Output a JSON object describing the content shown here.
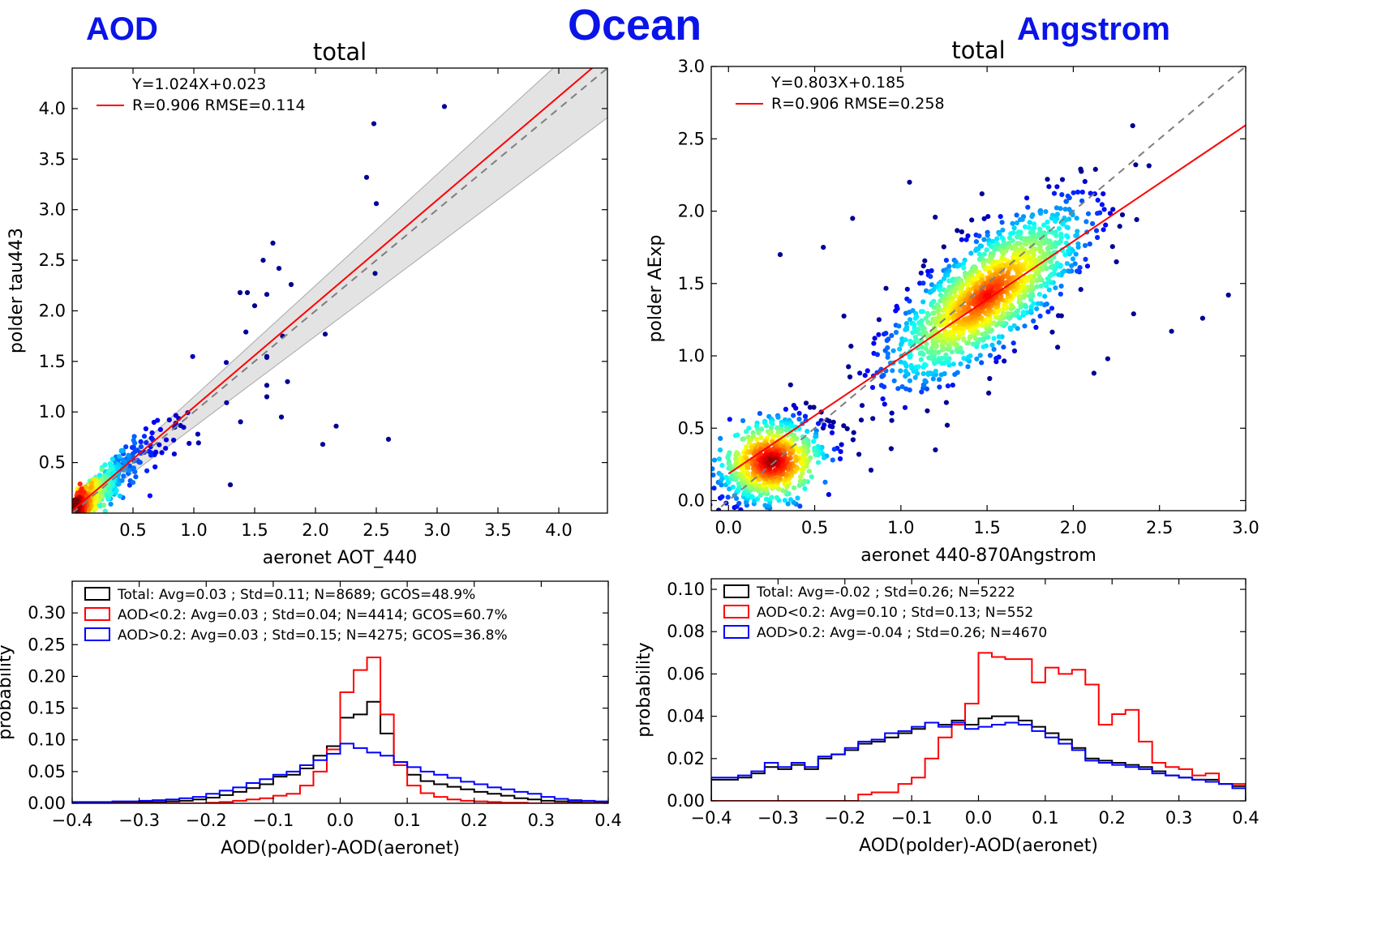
{
  "headers": {
    "left": "AOD",
    "center": "Ocean",
    "right": "Angstrom"
  },
  "chart_data": [
    {
      "id": "aod_scatter",
      "type": "scatter",
      "title": "total",
      "xlabel": "aeronet AOT_440",
      "ylabel": "polder tau443",
      "xlim": [
        0.0,
        4.4
      ],
      "ylim": [
        0.0,
        4.4
      ],
      "xticks": [
        0.5,
        1.0,
        1.5,
        2.0,
        2.5,
        3.0,
        3.5,
        4.0
      ],
      "yticks": [
        0.5,
        1.0,
        1.5,
        2.0,
        2.5,
        3.0,
        3.5,
        4.0
      ],
      "fit": {
        "slope": 1.024,
        "intercept": 0.023
      },
      "one_to_one": true,
      "envelope": {
        "low_slope": 0.9,
        "low_intercept": -0.05,
        "high_slope": 1.1,
        "high_intercept": 0.05
      },
      "legend": {
        "line1": "Y=1.024X+0.023",
        "line2": "R=0.906  RMSE=0.114",
        "location": "top-left"
      },
      "colormap": "density (blue to red)",
      "outliers": [
        {
          "x": 3.06,
          "y": 4.02
        },
        {
          "x": 2.48,
          "y": 3.85
        },
        {
          "x": 2.42,
          "y": 3.32
        },
        {
          "x": 2.5,
          "y": 3.06
        },
        {
          "x": 1.65,
          "y": 2.67
        },
        {
          "x": 1.57,
          "y": 2.5
        },
        {
          "x": 1.7,
          "y": 2.42
        },
        {
          "x": 2.49,
          "y": 2.37
        },
        {
          "x": 1.8,
          "y": 2.26
        },
        {
          "x": 1.38,
          "y": 2.18
        },
        {
          "x": 1.44,
          "y": 2.18
        },
        {
          "x": 1.5,
          "y": 2.05
        },
        {
          "x": 2.08,
          "y": 1.77
        },
        {
          "x": 1.73,
          "y": 1.75
        },
        {
          "x": 1.77,
          "y": 1.3
        },
        {
          "x": 1.72,
          "y": 0.95
        },
        {
          "x": 2.17,
          "y": 0.86
        },
        {
          "x": 2.06,
          "y": 0.68
        },
        {
          "x": 2.6,
          "y": 0.73
        },
        {
          "x": 1.3,
          "y": 0.28
        },
        {
          "x": 1.6,
          "y": 1.15
        }
      ]
    },
    {
      "id": "angstrom_scatter",
      "type": "scatter",
      "title": "total",
      "xlabel": "aeronet 440-870Angstrom",
      "ylabel": "polder AExp",
      "xlim": [
        -0.1,
        3.0
      ],
      "ylim": [
        -0.07,
        3.0
      ],
      "xticks": [
        0.0,
        0.5,
        1.0,
        1.5,
        2.0,
        2.5,
        3.0
      ],
      "yticks": [
        0.0,
        0.5,
        1.0,
        1.5,
        2.0,
        2.5,
        3.0
      ],
      "fit": {
        "slope": 0.803,
        "intercept": 0.185
      },
      "one_to_one": true,
      "legend": {
        "line1": "Y=0.803X+0.185",
        "line2": "R=0.906  RMSE=0.258",
        "location": "top-left"
      },
      "colormap": "density (blue to red)",
      "outliers": [
        {
          "x": 2.9,
          "y": 1.42
        },
        {
          "x": 2.75,
          "y": 1.26
        },
        {
          "x": 2.57,
          "y": 1.17
        },
        {
          "x": 2.35,
          "y": 1.29
        },
        {
          "x": 2.25,
          "y": 1.65
        },
        {
          "x": 1.05,
          "y": 2.2
        },
        {
          "x": 1.47,
          "y": 2.12
        },
        {
          "x": 1.85,
          "y": 2.22
        },
        {
          "x": 0.72,
          "y": 1.95
        },
        {
          "x": 0.55,
          "y": 1.75
        },
        {
          "x": 2.2,
          "y": 0.98
        },
        {
          "x": 2.12,
          "y": 0.88
        },
        {
          "x": 1.2,
          "y": 0.35
        },
        {
          "x": 0.3,
          "y": 1.7
        }
      ]
    },
    {
      "id": "aod_hist",
      "type": "histogram",
      "title": "",
      "xlabel": "AOD(polder)-AOD(aeronet)",
      "ylabel": "probability",
      "xlim": [
        -0.4,
        0.4
      ],
      "ylim": [
        0.0,
        0.35
      ],
      "xticks": [
        -0.4,
        -0.3,
        -0.2,
        -0.1,
        0.0,
        0.1,
        0.2,
        0.3,
        0.4
      ],
      "xtick_labels": [
        "−0.4",
        "−0.3",
        "−0.2",
        "−0.1",
        "0.0",
        "0.1",
        "0.2",
        "0.3",
        "0.4"
      ],
      "yticks": [
        0.0,
        0.05,
        0.1,
        0.15,
        0.2,
        0.25,
        0.3
      ],
      "ytick_labels": [
        "0.00",
        "0.05",
        "0.10",
        "0.15",
        "0.20",
        "0.25",
        "0.30"
      ],
      "bin_edges": [
        -0.4,
        -0.38,
        -0.36,
        -0.34,
        -0.32,
        -0.3,
        -0.28,
        -0.26,
        -0.24,
        -0.22,
        -0.2,
        -0.18,
        -0.16,
        -0.14,
        -0.12,
        -0.1,
        -0.08,
        -0.06,
        -0.04,
        -0.02,
        0.0,
        0.02,
        0.04,
        0.06,
        0.08,
        0.1,
        0.12,
        0.14,
        0.16,
        0.18,
        0.2,
        0.22,
        0.24,
        0.26,
        0.28,
        0.3,
        0.32,
        0.34,
        0.36,
        0.38,
        0.4
      ],
      "series": [
        {
          "name": "Total: Avg=0.03 ; Std=0.11; N=8689; GCOS=48.9%",
          "color": "#000000",
          "values": [
            0.001,
            0.001,
            0.001,
            0.001,
            0.001,
            0.002,
            0.002,
            0.003,
            0.004,
            0.006,
            0.009,
            0.013,
            0.018,
            0.024,
            0.03,
            0.042,
            0.045,
            0.055,
            0.075,
            0.09,
            0.135,
            0.14,
            0.16,
            0.11,
            0.065,
            0.045,
            0.035,
            0.03,
            0.026,
            0.022,
            0.018,
            0.015,
            0.012,
            0.008,
            0.006,
            0.004,
            0.003,
            0.002,
            0.001,
            0.001
          ]
        },
        {
          "name": "AOD<0.2: Avg=0.03 ; Std=0.04; N=4414; GCOS=60.7%",
          "color": "#ff0000",
          "values": [
            0,
            0,
            0,
            0,
            0,
            0,
            0,
            0,
            0,
            0,
            0.001,
            0.002,
            0.004,
            0.006,
            0.008,
            0.012,
            0.015,
            0.028,
            0.05,
            0.085,
            0.175,
            0.21,
            0.23,
            0.14,
            0.06,
            0.028,
            0.016,
            0.01,
            0.006,
            0.004,
            0.003,
            0.002,
            0.001,
            0.001,
            0,
            0,
            0,
            0,
            0,
            0
          ]
        },
        {
          "name": "AOD>0.2: Avg=0.03 ; Std=0.15; N=4275; GCOS=36.8%",
          "color": "#0000ff",
          "values": [
            0.002,
            0.002,
            0.002,
            0.003,
            0.003,
            0.004,
            0.005,
            0.006,
            0.008,
            0.01,
            0.015,
            0.02,
            0.025,
            0.032,
            0.038,
            0.045,
            0.05,
            0.06,
            0.068,
            0.078,
            0.094,
            0.087,
            0.08,
            0.075,
            0.065,
            0.057,
            0.05,
            0.045,
            0.04,
            0.034,
            0.03,
            0.025,
            0.022,
            0.018,
            0.015,
            0.01,
            0.007,
            0.005,
            0.004,
            0.003
          ]
        }
      ],
      "legend_location": "top-left"
    },
    {
      "id": "angstrom_hist",
      "type": "histogram",
      "title": "",
      "xlabel": "AOD(polder)-AOD(aeronet)",
      "ylabel": "probability",
      "xlim": [
        -0.4,
        0.4
      ],
      "ylim": [
        0.0,
        0.105
      ],
      "xticks": [
        -0.4,
        -0.3,
        -0.2,
        -0.1,
        0.0,
        0.1,
        0.2,
        0.3,
        0.4
      ],
      "xtick_labels": [
        "−0.4",
        "−0.3",
        "−0.2",
        "−0.1",
        "0.0",
        "0.1",
        "0.2",
        "0.3",
        "0.4"
      ],
      "yticks": [
        0.0,
        0.02,
        0.04,
        0.06,
        0.08,
        0.1
      ],
      "ytick_labels": [
        "0.00",
        "0.02",
        "0.04",
        "0.06",
        "0.08",
        "0.10"
      ],
      "bin_edges": [
        -0.4,
        -0.38,
        -0.36,
        -0.34,
        -0.32,
        -0.3,
        -0.28,
        -0.26,
        -0.24,
        -0.22,
        -0.2,
        -0.18,
        -0.16,
        -0.14,
        -0.12,
        -0.1,
        -0.08,
        -0.06,
        -0.04,
        -0.02,
        0.0,
        0.02,
        0.04,
        0.06,
        0.08,
        0.1,
        0.12,
        0.14,
        0.16,
        0.18,
        0.2,
        0.22,
        0.24,
        0.26,
        0.28,
        0.3,
        0.32,
        0.34,
        0.36,
        0.38,
        0.4
      ],
      "series": [
        {
          "name": "Total: Avg=-0.02 ; Std=0.26; N=5222",
          "color": "#000000",
          "values": [
            0.01,
            0.01,
            0.011,
            0.013,
            0.016,
            0.015,
            0.017,
            0.015,
            0.02,
            0.022,
            0.024,
            0.027,
            0.028,
            0.03,
            0.032,
            0.034,
            0.037,
            0.036,
            0.038,
            0.036,
            0.039,
            0.04,
            0.04,
            0.038,
            0.035,
            0.032,
            0.029,
            0.025,
            0.02,
            0.019,
            0.018,
            0.017,
            0.016,
            0.014,
            0.012,
            0.011,
            0.01,
            0.01,
            0.008,
            0.007
          ]
        },
        {
          "name": "AOD<0.2: Avg=0.10 ; Std=0.13; N=552",
          "color": "#ff0000",
          "values": [
            0,
            0,
            0,
            0,
            0,
            0,
            0,
            0,
            0,
            0,
            0,
            0.003,
            0.004,
            0.004,
            0.008,
            0.011,
            0.02,
            0.03,
            0.036,
            0.046,
            0.07,
            0.068,
            0.067,
            0.067,
            0.056,
            0.063,
            0.06,
            0.062,
            0.055,
            0.036,
            0.041,
            0.043,
            0.028,
            0.018,
            0.016,
            0.015,
            0.012,
            0.013,
            0.008,
            0.008
          ]
        },
        {
          "name": "AOD>0.2: Avg=-0.04 ; Std=0.26; N=4670",
          "color": "#0000ff",
          "values": [
            0.011,
            0.011,
            0.012,
            0.014,
            0.018,
            0.016,
            0.018,
            0.016,
            0.021,
            0.022,
            0.025,
            0.028,
            0.029,
            0.032,
            0.033,
            0.035,
            0.037,
            0.035,
            0.037,
            0.034,
            0.035,
            0.036,
            0.037,
            0.036,
            0.033,
            0.03,
            0.027,
            0.024,
            0.019,
            0.018,
            0.017,
            0.016,
            0.015,
            0.013,
            0.012,
            0.011,
            0.01,
            0.009,
            0.008,
            0.006
          ]
        }
      ],
      "legend_location": "top-left"
    }
  ]
}
